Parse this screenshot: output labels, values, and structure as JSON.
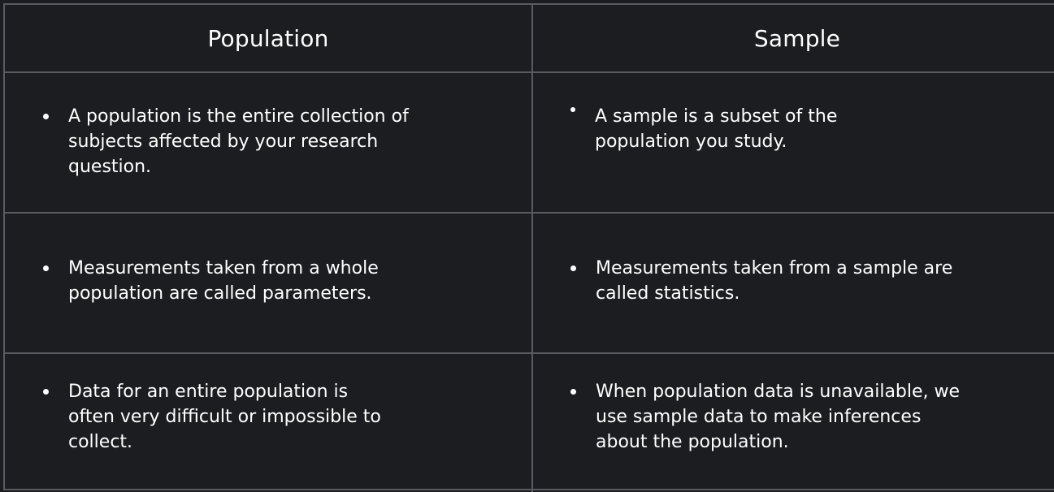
{
  "table": {
    "headers": [
      "Population",
      "Sample"
    ],
    "rows": [
      {
        "population": "A population is the entire collection of subjects affected by your research question.",
        "sample": "A sample is a subset of the population you study."
      },
      {
        "population": "Measurements taken from a whole population are called parameters.",
        "sample": "Measurements taken from a sample are called statistics."
      },
      {
        "population": "Data for an entire population is often very difficult or impossible to collect.",
        "sample": "When population data is unavailable, we use sample data to make inferences about the population."
      }
    ]
  }
}
